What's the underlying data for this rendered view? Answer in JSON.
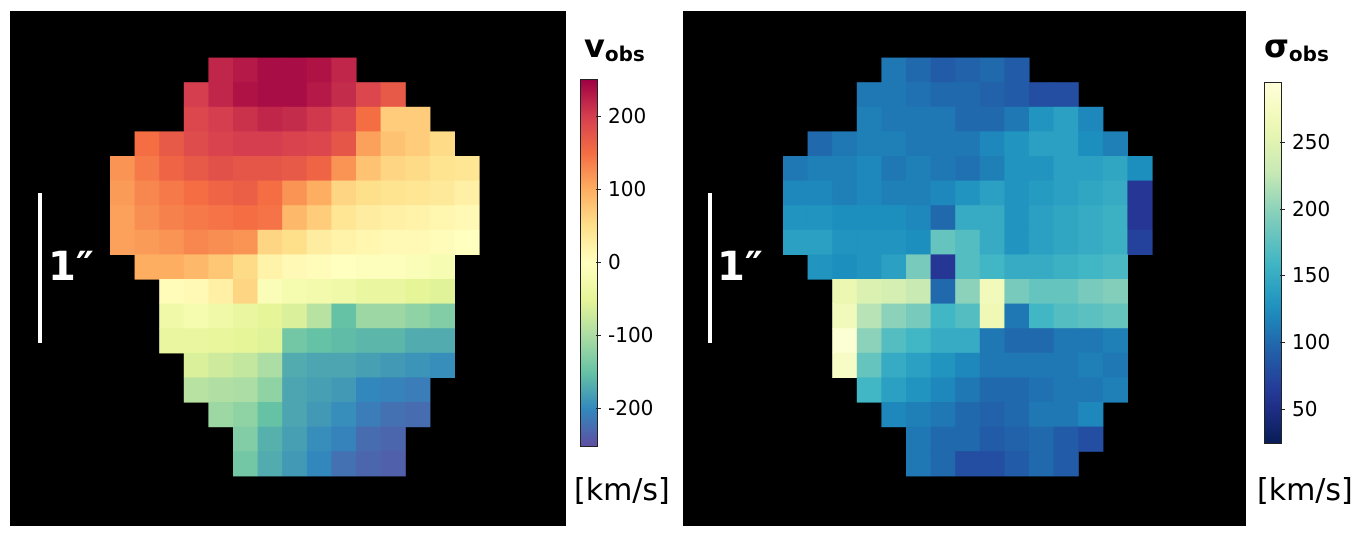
{
  "chart_data": [
    {
      "type": "heatmap",
      "title": "v",
      "title_sub": "obs",
      "unit": "[km/s]",
      "scale_label": "1″",
      "colormap": "Spectral_r",
      "vmin": -250,
      "vmax": 250,
      "colorbar_ticks": [
        200,
        100,
        0,
        -100,
        -200
      ],
      "colorbar_tick_labels": [
        "200",
        "100",
        "0",
        "-100",
        "-200"
      ],
      "grid": [
        [
          null,
          null,
          null,
          null,
          null,
          null,
          null,
          null,
          null,
          null,
          null,
          null,
          null,
          null,
          null,
          null
        ],
        [
          null,
          null,
          null,
          null,
          220,
          230,
          240,
          240,
          235,
          220,
          null,
          null,
          null,
          null,
          null,
          null
        ],
        [
          null,
          null,
          null,
          200,
          220,
          235,
          240,
          240,
          230,
          215,
          190,
          170,
          null,
          null,
          null,
          null
        ],
        [
          null,
          null,
          null,
          190,
          200,
          210,
          220,
          215,
          205,
          190,
          150,
          70,
          70,
          null,
          null,
          null
        ],
        [
          null,
          150,
          170,
          185,
          195,
          200,
          200,
          195,
          190,
          175,
          110,
          80,
          70,
          55,
          null,
          null
        ],
        [
          120,
          140,
          160,
          170,
          180,
          175,
          175,
          170,
          160,
          120,
          80,
          60,
          55,
          45,
          40,
          null
        ],
        [
          115,
          130,
          140,
          150,
          160,
          165,
          150,
          120,
          100,
          60,
          50,
          45,
          40,
          35,
          25,
          null
        ],
        [
          110,
          125,
          135,
          140,
          145,
          150,
          145,
          90,
          70,
          40,
          30,
          25,
          20,
          15,
          10,
          null
        ],
        [
          110,
          115,
          120,
          130,
          125,
          120,
          60,
          50,
          30,
          20,
          15,
          10,
          10,
          5,
          0,
          null
        ],
        [
          null,
          100,
          100,
          90,
          75,
          55,
          20,
          10,
          5,
          0,
          -5,
          -5,
          -10,
          -15,
          null,
          null
        ],
        [
          null,
          null,
          5,
          10,
          25,
          60,
          -10,
          -20,
          -25,
          -30,
          -40,
          -40,
          -50,
          -55,
          null,
          null
        ],
        [
          null,
          null,
          -30,
          -20,
          -30,
          -40,
          -50,
          -60,
          -90,
          -150,
          -110,
          -110,
          -120,
          -130,
          null,
          null
        ],
        [
          null,
          null,
          -40,
          -40,
          -45,
          -50,
          -55,
          -140,
          -150,
          -155,
          -160,
          -160,
          -170,
          -170,
          null,
          null
        ],
        [
          null,
          null,
          null,
          -60,
          -70,
          -80,
          -100,
          -170,
          -175,
          -175,
          -180,
          -185,
          -190,
          -195,
          null,
          null
        ],
        [
          null,
          null,
          null,
          -90,
          -95,
          -100,
          -120,
          -175,
          -180,
          -185,
          -200,
          -205,
          -210,
          null,
          null,
          null
        ],
        [
          null,
          null,
          null,
          null,
          -110,
          -120,
          -150,
          -175,
          -185,
          -195,
          -210,
          -220,
          -225,
          null,
          null,
          null
        ],
        [
          null,
          null,
          null,
          null,
          null,
          -130,
          -165,
          -180,
          -195,
          -205,
          -225,
          -230,
          null,
          null,
          null,
          null
        ],
        [
          null,
          null,
          null,
          null,
          null,
          -140,
          -170,
          -185,
          -200,
          -220,
          -230,
          -235,
          null,
          null,
          null,
          null
        ],
        [
          null,
          null,
          null,
          null,
          null,
          null,
          null,
          null,
          null,
          null,
          null,
          null,
          null,
          null,
          null,
          null
        ]
      ]
    },
    {
      "type": "heatmap",
      "title": "σ",
      "title_sub": "obs",
      "unit": "[km/s]",
      "scale_label": "1″",
      "colormap": "YlGnBu_r",
      "vmin": 25,
      "vmax": 295,
      "colorbar_ticks": [
        250,
        200,
        150,
        100,
        50
      ],
      "colorbar_tick_labels": [
        "250",
        "200",
        "150",
        "100",
        "50"
      ],
      "grid": [
        [
          null,
          null,
          null,
          null,
          null,
          null,
          null,
          null,
          null,
          null,
          null,
          null,
          null,
          null,
          null,
          null
        ],
        [
          null,
          null,
          null,
          null,
          110,
          100,
          90,
          95,
          100,
          90,
          null,
          null,
          null,
          null,
          null,
          null
        ],
        [
          null,
          null,
          null,
          110,
          110,
          105,
          100,
          100,
          95,
          90,
          80,
          80,
          null,
          null,
          null,
          null
        ],
        [
          null,
          null,
          null,
          115,
          110,
          110,
          110,
          100,
          100,
          110,
          130,
          140,
          120,
          null,
          null,
          null
        ],
        [
          null,
          100,
          110,
          115,
          115,
          110,
          110,
          110,
          120,
          130,
          140,
          140,
          125,
          115,
          null,
          null
        ],
        [
          110,
          115,
          115,
          120,
          110,
          115,
          110,
          105,
          115,
          130,
          130,
          140,
          140,
          145,
          125,
          null
        ],
        [
          120,
          120,
          115,
          120,
          115,
          115,
          120,
          130,
          140,
          130,
          135,
          140,
          145,
          150,
          60,
          null
        ],
        [
          130,
          130,
          125,
          125,
          125,
          120,
          100,
          150,
          150,
          130,
          140,
          145,
          150,
          155,
          60,
          null
        ],
        [
          140,
          140,
          130,
          130,
          130,
          125,
          180,
          170,
          150,
          130,
          140,
          145,
          150,
          155,
          70,
          null
        ],
        [
          null,
          130,
          125,
          130,
          140,
          190,
          60,
          170,
          160,
          150,
          150,
          155,
          160,
          165,
          null,
          null
        ],
        [
          null,
          null,
          260,
          245,
          240,
          230,
          100,
          200,
          270,
          190,
          180,
          180,
          190,
          195,
          null,
          null
        ],
        [
          null,
          null,
          270,
          220,
          200,
          190,
          160,
          170,
          265,
          110,
          160,
          170,
          175,
          180,
          null,
          null
        ],
        [
          null,
          null,
          290,
          200,
          170,
          160,
          150,
          150,
          110,
          100,
          100,
          110,
          110,
          115,
          null,
          null
        ],
        [
          null,
          null,
          280,
          180,
          150,
          140,
          130,
          120,
          110,
          110,
          110,
          110,
          115,
          110,
          null,
          null
        ],
        [
          null,
          null,
          null,
          160,
          140,
          130,
          120,
          110,
          100,
          100,
          105,
          110,
          110,
          115,
          null,
          null
        ],
        [
          null,
          null,
          null,
          null,
          120,
          115,
          110,
          100,
          95,
          100,
          110,
          110,
          120,
          null,
          null,
          null
        ],
        [
          null,
          null,
          null,
          null,
          null,
          110,
          100,
          100,
          90,
          95,
          100,
          90,
          80,
          null,
          null,
          null
        ],
        [
          null,
          null,
          null,
          null,
          null,
          110,
          100,
          80,
          80,
          90,
          100,
          90,
          null,
          null,
          null,
          null
        ],
        [
          null,
          null,
          null,
          null,
          null,
          null,
          null,
          null,
          null,
          null,
          null,
          null,
          null,
          null,
          null,
          null
        ]
      ]
    }
  ]
}
